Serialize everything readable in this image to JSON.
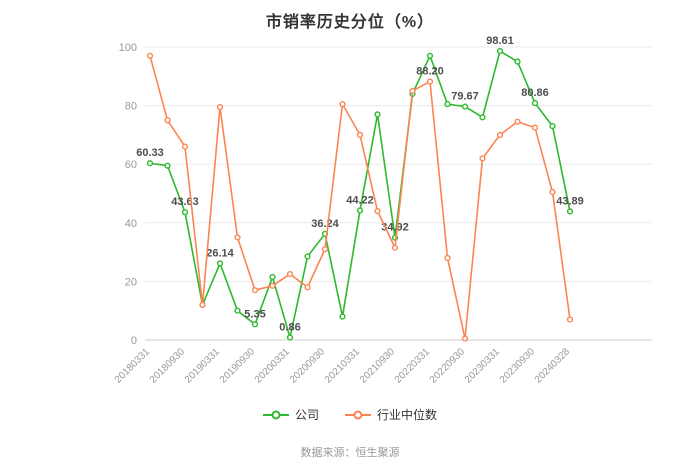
{
  "title": "市销率历史分位（%）",
  "source": "数据来源：恒生聚源",
  "legend": [
    {
      "label": "公司",
      "color": "#2db92d"
    },
    {
      "label": "行业中位数",
      "color": "#fc8452"
    }
  ],
  "chart_data": {
    "type": "line",
    "title": "市销率历史分位（%）",
    "xlabel": "",
    "ylabel": "",
    "ylim": [
      0,
      100
    ],
    "yticks": [
      0,
      20,
      40,
      60,
      80,
      100
    ],
    "grid": true,
    "legend_position": "bottom",
    "xticks": [
      "20180331",
      "20180930",
      "20190331",
      "20190930",
      "20200331",
      "20200930",
      "20210331",
      "20210930",
      "20220331",
      "20220930",
      "20230331",
      "20230930",
      "20240328"
    ],
    "x": [
      "20180331",
      "20180630",
      "20180930",
      "20181231",
      "20190331",
      "20190630",
      "20190930",
      "20191231",
      "20200331",
      "20200630",
      "20200930",
      "20201231",
      "20210331",
      "20210630",
      "20210930",
      "20211231",
      "20220331",
      "20220630",
      "20220930",
      "20221231",
      "20230331",
      "20230630",
      "20230930",
      "20231231",
      "20240328"
    ],
    "series": [
      {
        "name": "公司",
        "color": "#2db92d",
        "values": [
          60.33,
          59.5,
          43.63,
          12.0,
          26.14,
          10.0,
          5.35,
          21.5,
          0.86,
          28.5,
          36.24,
          8.0,
          44.22,
          77.0,
          34.92,
          84.0,
          97.0,
          80.5,
          79.67,
          76.0,
          98.61,
          95.0,
          80.86,
          73.0,
          43.89
        ],
        "labels": [
          {
            "i": 0,
            "text": "60.33"
          },
          {
            "i": 2,
            "text": "43.63"
          },
          {
            "i": 4,
            "text": "26.14"
          },
          {
            "i": 6,
            "text": "5.35"
          },
          {
            "i": 8,
            "text": "0.86"
          },
          {
            "i": 10,
            "text": "36.24"
          },
          {
            "i": 12,
            "text": "44.22"
          },
          {
            "i": 14,
            "text": "34.92"
          },
          {
            "i": 18,
            "text": "79.67"
          },
          {
            "i": 20,
            "text": "98.61"
          },
          {
            "i": 22,
            "text": "80.86"
          },
          {
            "i": 24,
            "text": "43.89"
          }
        ]
      },
      {
        "name": "行业中位数",
        "color": "#fc8452",
        "values": [
          97.0,
          75.0,
          66.0,
          12.0,
          79.5,
          35.0,
          17.0,
          18.5,
          22.5,
          18.0,
          31.0,
          80.5,
          70.0,
          44.0,
          31.5,
          85.0,
          88.2,
          28.0,
          0.5,
          62.0,
          70.0,
          74.5,
          72.5,
          50.5,
          7.0
        ],
        "labels": [
          {
            "i": 16,
            "text": "88.20"
          }
        ]
      }
    ]
  }
}
